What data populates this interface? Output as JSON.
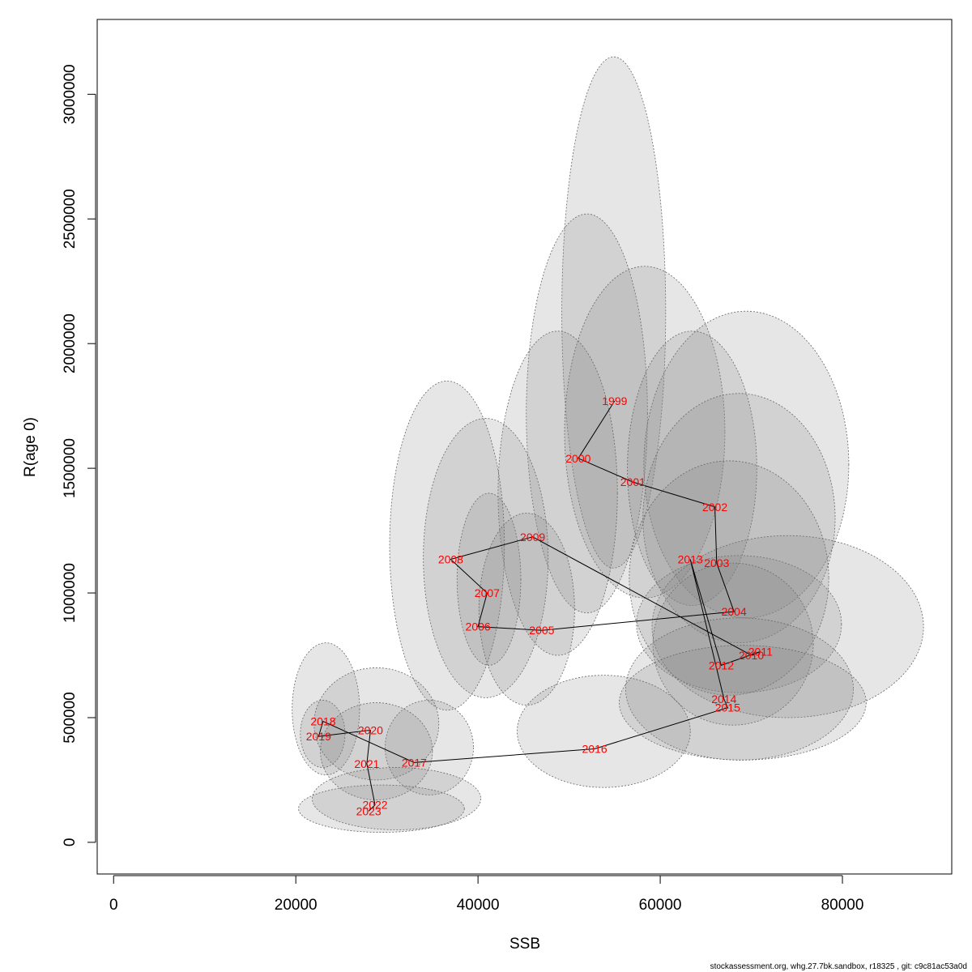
{
  "chart_data": {
    "type": "scatter",
    "xlabel": "SSB",
    "ylabel": "R(age 0)",
    "xlim": [
      -1800,
      92000
    ],
    "ylim": [
      -127000,
      3300000
    ],
    "x_ticks": [
      0,
      20000,
      40000,
      60000,
      80000
    ],
    "y_ticks": [
      0,
      500000,
      1000000,
      1500000,
      2000000,
      2500000,
      3000000
    ],
    "grid": false,
    "points": [
      {
        "year": "1999",
        "ssb": 55000,
        "r": 1770000
      },
      {
        "year": "2000",
        "ssb": 51000,
        "r": 1540000
      },
      {
        "year": "2001",
        "ssb": 57000,
        "r": 1445000
      },
      {
        "year": "2002",
        "ssb": 66000,
        "r": 1345000
      },
      {
        "year": "2003",
        "ssb": 66200,
        "r": 1120000
      },
      {
        "year": "2004",
        "ssb": 68100,
        "r": 925000
      },
      {
        "year": "2005",
        "ssb": 47000,
        "r": 850000
      },
      {
        "year": "2006",
        "ssb": 40000,
        "r": 865000
      },
      {
        "year": "2007",
        "ssb": 41000,
        "r": 1000000
      },
      {
        "year": "2008",
        "ssb": 37000,
        "r": 1135000
      },
      {
        "year": "2009",
        "ssb": 46000,
        "r": 1225000
      },
      {
        "year": "2010",
        "ssb": 70000,
        "r": 750000
      },
      {
        "year": "2011",
        "ssb": 71000,
        "r": 765000
      },
      {
        "year": "2012",
        "ssb": 66700,
        "r": 710000
      },
      {
        "year": "2013",
        "ssb": 63300,
        "r": 1135000
      },
      {
        "year": "2014",
        "ssb": 67000,
        "r": 575000
      },
      {
        "year": "2015",
        "ssb": 67400,
        "r": 540000
      },
      {
        "year": "2016",
        "ssb": 52800,
        "r": 375000
      },
      {
        "year": "2017",
        "ssb": 33000,
        "r": 320000
      },
      {
        "year": "2018",
        "ssb": 23000,
        "r": 485000
      },
      {
        "year": "2019",
        "ssb": 22500,
        "r": 425000
      },
      {
        "year": "2020",
        "ssb": 28200,
        "r": 450000
      },
      {
        "year": "2021",
        "ssb": 27800,
        "r": 315000
      },
      {
        "year": "2022",
        "ssb": 28700,
        "r": 150000
      },
      {
        "year": "2023",
        "ssb": 28000,
        "r": 125000
      }
    ],
    "confidence_ellipses": [
      {
        "year": "1999",
        "ssb_range": [
          49200,
          60600
        ],
        "r_range": [
          1100000,
          3150000
        ]
      },
      {
        "year": "2000",
        "ssb_range": [
          45300,
          58600
        ],
        "r_range": [
          920000,
          2520000
        ]
      },
      {
        "year": "2001",
        "ssb_range": [
          49500,
          67100
        ],
        "r_range": [
          980000,
          2310000
        ]
      },
      {
        "year": "2002",
        "ssb_range": [
          58200,
          80700
        ],
        "r_range": [
          900000,
          2130000
        ]
      },
      {
        "year": "2003",
        "ssb_range": [
          56400,
          70600
        ],
        "r_range": [
          950000,
          2050000
        ]
      },
      {
        "year": "2004",
        "ssb_range": [
          58100,
          79200
        ],
        "r_range": [
          800000,
          1800000
        ]
      },
      {
        "year": "2005",
        "ssb_range": [
          42200,
          55300
        ],
        "r_range": [
          750000,
          2050000
        ]
      },
      {
        "year": "2006",
        "ssb_range": [
          34000,
          47700
        ],
        "r_range": [
          580000,
          1700000
        ]
      },
      {
        "year": "2007",
        "ssb_range": [
          37700,
          44700
        ],
        "r_range": [
          710000,
          1400000
        ]
      },
      {
        "year": "2008",
        "ssb_range": [
          30300,
          42900
        ],
        "r_range": [
          530000,
          1850000
        ]
      },
      {
        "year": "2009",
        "ssb_range": [
          40100,
          50600
        ],
        "r_range": [
          550000,
          1320000
        ]
      },
      {
        "year": "2010",
        "ssb_range": [
          57400,
          79900
        ],
        "r_range": [
          600000,
          1150000
        ]
      },
      {
        "year": "2011",
        "ssb_range": [
          59100,
          88900
        ],
        "r_range": [
          500000,
          1230000
        ]
      },
      {
        "year": "2012",
        "ssb_range": [
          59200,
          76800
        ],
        "r_range": [
          470000,
          1120000
        ]
      },
      {
        "year": "2013",
        "ssb_range": [
          56600,
          78500
        ],
        "r_range": [
          590000,
          1530000
        ]
      },
      {
        "year": "2014",
        "ssb_range": [
          56200,
          81200
        ],
        "r_range": [
          330000,
          900000
        ]
      },
      {
        "year": "2015",
        "ssb_range": [
          55500,
          82600
        ],
        "r_range": [
          330000,
          790000
        ]
      },
      {
        "year": "2016",
        "ssb_range": [
          44300,
          63300
        ],
        "r_range": [
          220000,
          670000
        ]
      },
      {
        "year": "2017",
        "ssb_range": [
          29800,
          39500
        ],
        "r_range": [
          190000,
          570000
        ]
      },
      {
        "year": "2018",
        "ssb_range": [
          19600,
          27000
        ],
        "r_range": [
          270000,
          800000
        ]
      },
      {
        "year": "2019",
        "ssb_range": [
          20500,
          25400
        ],
        "r_range": [
          300000,
          570000
        ]
      },
      {
        "year": "2020",
        "ssb_range": [
          22000,
          35700
        ],
        "r_range": [
          250000,
          700000
        ]
      },
      {
        "year": "2021",
        "ssb_range": [
          22700,
          35000
        ],
        "r_range": [
          170000,
          560000
        ]
      },
      {
        "year": "2022",
        "ssb_range": [
          21800,
          40300
        ],
        "r_range": [
          50000,
          300000
        ]
      },
      {
        "year": "2023",
        "ssb_range": [
          20300,
          38500
        ],
        "r_range": [
          40000,
          230000
        ]
      }
    ],
    "colors": {
      "ellipse_fill": "#808080",
      "ellipse_stroke": "#666666",
      "path": "#000000",
      "labels": "#ff0000"
    }
  },
  "footer": "stockassessment.org, whg.27.7bk.sandbox, r18325 , git: c9c81ac53a0d"
}
